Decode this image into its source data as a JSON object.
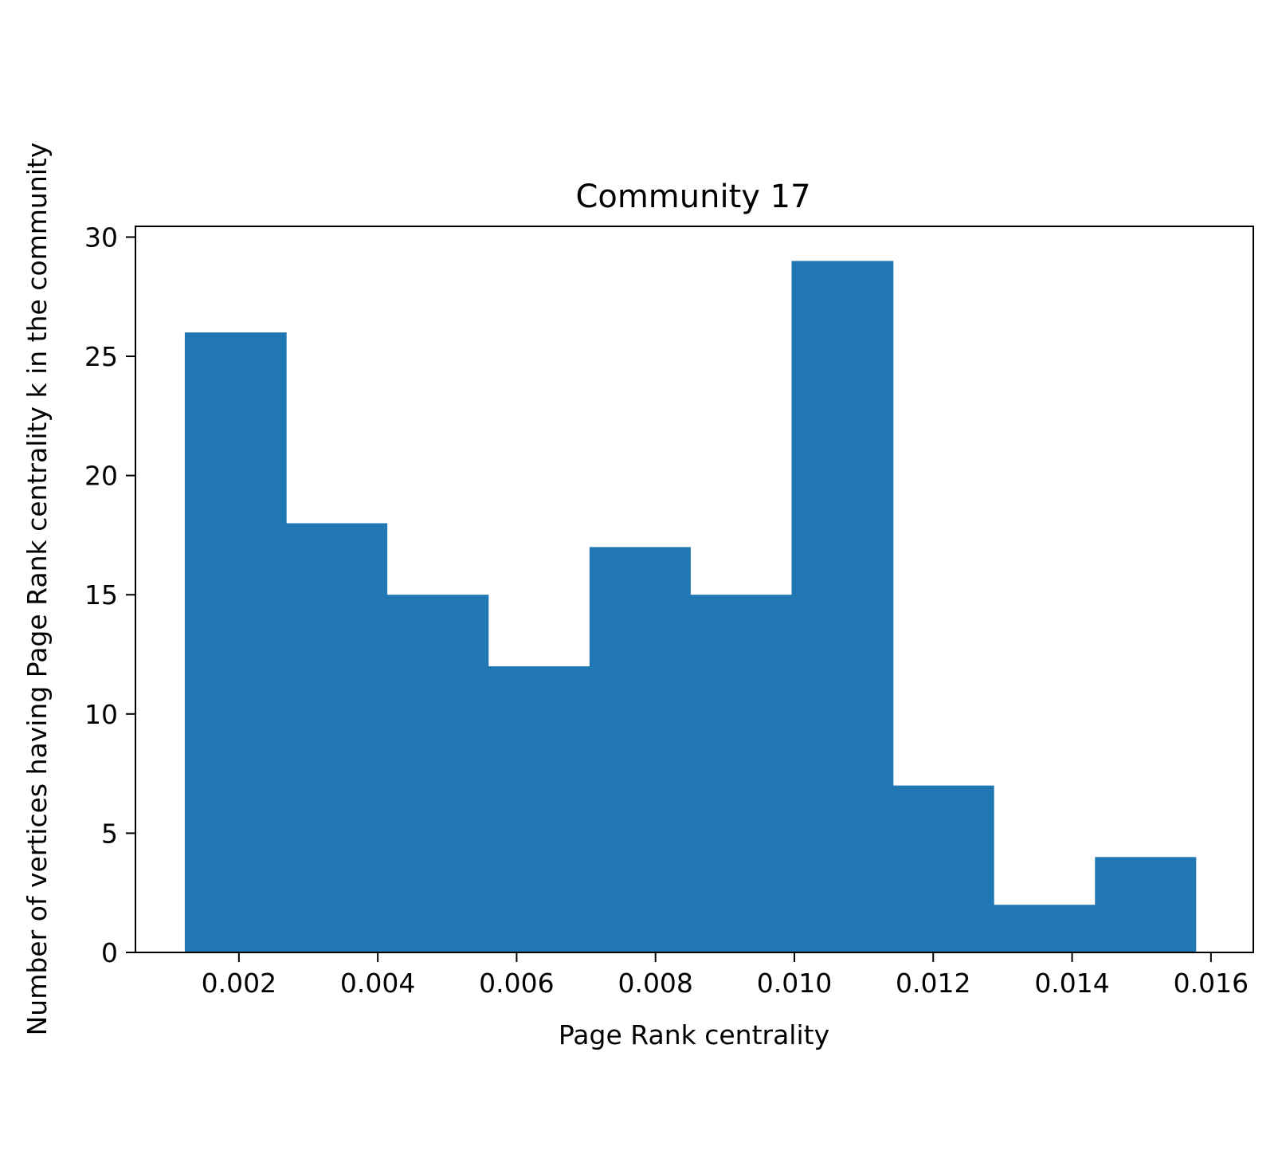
{
  "chart_data": {
    "type": "bar",
    "title": "Community 17",
    "xlabel": "Page Rank centrality",
    "ylabel": "Number of vertices having Page Rank centrality k in the community",
    "bin_edges": [
      0.00122,
      0.00268,
      0.00413,
      0.00559,
      0.00705,
      0.0085,
      0.00996,
      0.01142,
      0.01287,
      0.01433,
      0.01578
    ],
    "values": [
      26,
      18,
      15,
      12,
      17,
      15,
      29,
      7,
      2,
      4
    ],
    "xlim": [
      0.00051,
      0.01661
    ],
    "ylim": [
      0,
      30.45
    ],
    "x_ticks": [
      0.002,
      0.004,
      0.006,
      0.008,
      0.01,
      0.012,
      0.014,
      0.016
    ],
    "x_tick_labels": [
      "0.002",
      "0.004",
      "0.006",
      "0.008",
      "0.010",
      "0.012",
      "0.014",
      "0.016"
    ],
    "y_ticks": [
      0,
      5,
      10,
      15,
      20,
      25,
      30
    ],
    "y_tick_labels": [
      "0",
      "5",
      "10",
      "15",
      "20",
      "25",
      "30"
    ],
    "bar_color": "#2077b4",
    "grid": false,
    "legend": "none"
  }
}
